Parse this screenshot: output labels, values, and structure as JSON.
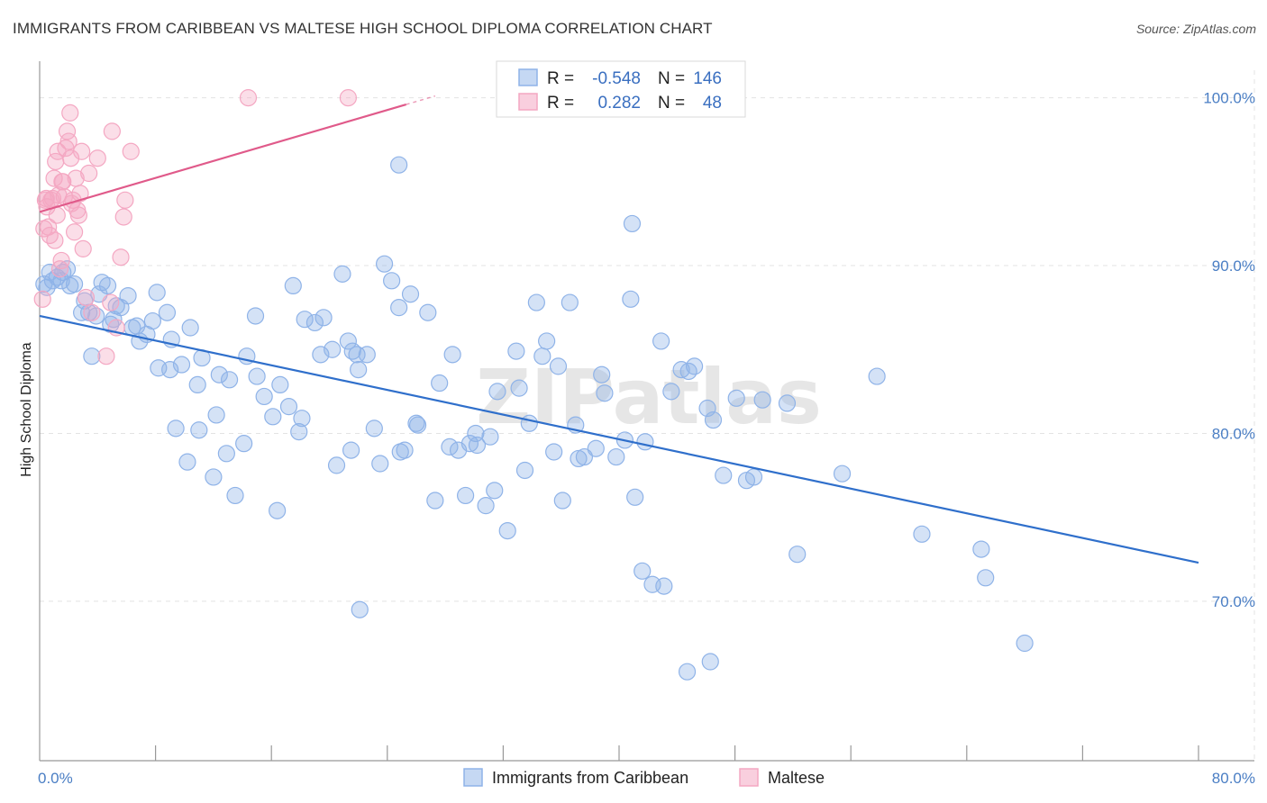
{
  "header": {
    "title": "IMMIGRANTS FROM CARIBBEAN VS MALTESE HIGH SCHOOL DIPLOMA CORRELATION CHART",
    "source": "Source: ZipAtlas.com"
  },
  "watermark": "ZIPatlas",
  "chart_data": {
    "type": "scatter",
    "title": "IMMIGRANTS FROM CARIBBEAN VS MALTESE HIGH SCHOOL DIPLOMA CORRELATION CHART",
    "ylabel": "High School Diploma",
    "xlabel": "",
    "xlim": [
      0,
      80
    ],
    "ylim": [
      60.5,
      102.5
    ],
    "x_tick_labels": [
      "0.0%",
      "80.0%"
    ],
    "y_ticks": [
      {
        "value": 70,
        "label": "70.0%"
      },
      {
        "value": 80,
        "label": "80.0%"
      },
      {
        "value": 90,
        "label": "90.0%"
      },
      {
        "value": 100,
        "label": "100.0%"
      }
    ],
    "grid": true,
    "legend_stats": [
      {
        "r_label": "R =",
        "r": "-0.548",
        "n_label": "N =",
        "n": "146"
      },
      {
        "r_label": "R =",
        "r": "0.282",
        "n_label": "N =",
        "n": "48"
      }
    ],
    "series": [
      {
        "name": "Immigrants from Caribbean",
        "color": "#8fb3e8",
        "line_color": "#2f6fcb",
        "trend": {
          "x0": 0,
          "y0": 87.0,
          "x1": 80,
          "y1": 72.3
        },
        "points": [
          [
            0.5,
            88.7
          ],
          [
            0.7,
            89.6
          ],
          [
            1.2,
            89.3
          ],
          [
            1.5,
            89.1
          ],
          [
            1.9,
            89.8
          ],
          [
            2.1,
            88.8
          ],
          [
            2.9,
            87.2
          ],
          [
            3.1,
            87.9
          ],
          [
            3.4,
            87.2
          ],
          [
            3.9,
            87.0
          ],
          [
            4.3,
            89.0
          ],
          [
            4.7,
            88.8
          ],
          [
            5.1,
            86.8
          ],
          [
            5.6,
            87.5
          ],
          [
            6.1,
            88.2
          ],
          [
            6.4,
            86.3
          ],
          [
            6.9,
            85.5
          ],
          [
            7.4,
            85.9
          ],
          [
            8.1,
            88.4
          ],
          [
            8.8,
            87.2
          ],
          [
            5.3,
            87.6
          ],
          [
            4.9,
            86.5
          ],
          [
            7.8,
            86.7
          ],
          [
            9.1,
            85.6
          ],
          [
            10.4,
            86.3
          ],
          [
            9.8,
            84.1
          ],
          [
            11.2,
            84.5
          ],
          [
            12.4,
            83.5
          ],
          [
            13.1,
            83.2
          ],
          [
            14.3,
            84.6
          ],
          [
            14.9,
            87.0
          ],
          [
            15.5,
            82.2
          ],
          [
            16.1,
            81.0
          ],
          [
            16.6,
            82.9
          ],
          [
            17.2,
            81.6
          ],
          [
            17.9,
            80.1
          ],
          [
            18.3,
            86.8
          ],
          [
            19.0,
            86.6
          ],
          [
            19.4,
            84.7
          ],
          [
            20.2,
            85.0
          ],
          [
            21.3,
            85.5
          ],
          [
            21.6,
            84.9
          ],
          [
            22.0,
            83.8
          ],
          [
            22.6,
            84.7
          ],
          [
            23.1,
            80.3
          ],
          [
            23.8,
            90.1
          ],
          [
            24.3,
            89.1
          ],
          [
            24.8,
            87.5
          ],
          [
            25.2,
            79.0
          ],
          [
            25.6,
            88.3
          ],
          [
            26.1,
            80.5
          ],
          [
            26.8,
            87.2
          ],
          [
            27.6,
            83.0
          ],
          [
            28.3,
            79.2
          ],
          [
            28.9,
            79.0
          ],
          [
            29.4,
            76.3
          ],
          [
            30.1,
            80.0
          ],
          [
            30.8,
            75.7
          ],
          [
            31.6,
            82.5
          ],
          [
            32.3,
            74.2
          ],
          [
            33.1,
            82.7
          ],
          [
            33.8,
            80.6
          ],
          [
            34.3,
            87.8
          ],
          [
            35.0,
            85.5
          ],
          [
            35.8,
            84.0
          ],
          [
            36.1,
            76.0
          ],
          [
            37.2,
            78.5
          ],
          [
            37.6,
            78.6
          ],
          [
            38.4,
            79.1
          ],
          [
            39.0,
            82.4
          ],
          [
            39.8,
            78.6
          ],
          [
            40.4,
            79.6
          ],
          [
            40.8,
            88.0
          ],
          [
            41.1,
            76.2
          ],
          [
            41.6,
            71.8
          ],
          [
            42.3,
            71.0
          ],
          [
            42.9,
            85.5
          ],
          [
            43.6,
            82.5
          ],
          [
            44.3,
            83.8
          ],
          [
            44.8,
            83.7
          ],
          [
            45.2,
            84.0
          ],
          [
            46.1,
            81.5
          ],
          [
            46.5,
            80.8
          ],
          [
            47.2,
            77.5
          ],
          [
            48.1,
            82.1
          ],
          [
            48.8,
            77.2
          ],
          [
            49.9,
            82.0
          ],
          [
            51.6,
            81.8
          ],
          [
            52.3,
            72.8
          ],
          [
            55.4,
            77.6
          ],
          [
            57.8,
            83.4
          ],
          [
            60.9,
            74.0
          ],
          [
            65.0,
            73.1
          ],
          [
            65.3,
            71.4
          ],
          [
            68.0,
            67.5
          ],
          [
            44.7,
            65.8
          ],
          [
            46.3,
            66.4
          ],
          [
            40.9,
            92.5
          ],
          [
            24.8,
            96.0
          ],
          [
            22.1,
            69.5
          ],
          [
            20.9,
            89.5
          ],
          [
            19.6,
            86.9
          ],
          [
            17.5,
            88.8
          ],
          [
            21.9,
            84.7
          ],
          [
            12.2,
            81.1
          ],
          [
            11.0,
            80.2
          ],
          [
            10.2,
            78.3
          ],
          [
            12.0,
            77.4
          ],
          [
            13.5,
            76.3
          ],
          [
            16.4,
            75.4
          ],
          [
            14.1,
            79.4
          ],
          [
            12.9,
            78.8
          ],
          [
            9.4,
            80.3
          ],
          [
            15.0,
            83.4
          ],
          [
            26.0,
            80.6
          ],
          [
            27.3,
            76.0
          ],
          [
            29.7,
            79.4
          ],
          [
            31.4,
            76.6
          ],
          [
            33.5,
            77.8
          ],
          [
            34.7,
            84.6
          ],
          [
            36.6,
            87.8
          ],
          [
            37.0,
            80.5
          ],
          [
            21.5,
            79.0
          ],
          [
            23.5,
            78.2
          ],
          [
            8.2,
            83.9
          ],
          [
            9.0,
            83.8
          ],
          [
            6.7,
            86.4
          ],
          [
            3.6,
            84.6
          ],
          [
            2.4,
            88.9
          ],
          [
            1.6,
            89.6
          ],
          [
            0.9,
            89.1
          ],
          [
            0.3,
            88.9
          ],
          [
            4.1,
            88.3
          ],
          [
            10.9,
            82.9
          ],
          [
            18.1,
            80.9
          ],
          [
            20.5,
            78.1
          ],
          [
            24.9,
            78.9
          ],
          [
            28.5,
            84.7
          ],
          [
            30.2,
            79.3
          ],
          [
            32.9,
            84.9
          ],
          [
            35.5,
            78.9
          ],
          [
            38.8,
            83.5
          ],
          [
            41.8,
            79.5
          ],
          [
            43.1,
            70.9
          ],
          [
            49.3,
            77.4
          ],
          [
            31.1,
            79.8
          ]
        ]
      },
      {
        "name": "Maltese",
        "color": "#f4a7c2",
        "line_color": "#e05a8a",
        "trend": {
          "x0": 0,
          "y0": 93.2,
          "x1": 25.3,
          "y1": 99.6
        },
        "points": [
          [
            0.2,
            88.0
          ],
          [
            0.3,
            92.2
          ],
          [
            0.4,
            93.9
          ],
          [
            0.5,
            93.5
          ],
          [
            0.6,
            92.3
          ],
          [
            0.7,
            91.8
          ],
          [
            0.8,
            93.9
          ],
          [
            0.9,
            94.0
          ],
          [
            1.0,
            95.2
          ],
          [
            1.1,
            96.2
          ],
          [
            1.2,
            93.0
          ],
          [
            1.3,
            94.2
          ],
          [
            1.4,
            89.8
          ],
          [
            1.5,
            90.3
          ],
          [
            1.6,
            95.0
          ],
          [
            1.7,
            94.1
          ],
          [
            1.8,
            97.0
          ],
          [
            1.9,
            98.0
          ],
          [
            2.0,
            97.4
          ],
          [
            2.1,
            99.1
          ],
          [
            2.2,
            93.7
          ],
          [
            2.3,
            93.9
          ],
          [
            2.4,
            92.0
          ],
          [
            2.5,
            95.2
          ],
          [
            2.6,
            93.3
          ],
          [
            2.7,
            93.0
          ],
          [
            2.8,
            94.3
          ],
          [
            2.9,
            96.8
          ],
          [
            3.0,
            91.0
          ],
          [
            3.2,
            88.1
          ],
          [
            3.4,
            95.5
          ],
          [
            3.6,
            87.2
          ],
          [
            4.0,
            96.4
          ],
          [
            4.6,
            84.6
          ],
          [
            5.0,
            98.0
          ],
          [
            5.3,
            86.3
          ],
          [
            5.6,
            90.5
          ],
          [
            5.8,
            92.9
          ],
          [
            5.9,
            93.9
          ],
          [
            6.3,
            96.8
          ],
          [
            14.4,
            100.0
          ],
          [
            21.3,
            100.0
          ],
          [
            1.25,
            96.8
          ],
          [
            0.45,
            94.0
          ],
          [
            1.05,
            91.5
          ],
          [
            4.9,
            87.8
          ],
          [
            2.15,
            96.4
          ],
          [
            1.55,
            95.0
          ]
        ]
      }
    ]
  }
}
